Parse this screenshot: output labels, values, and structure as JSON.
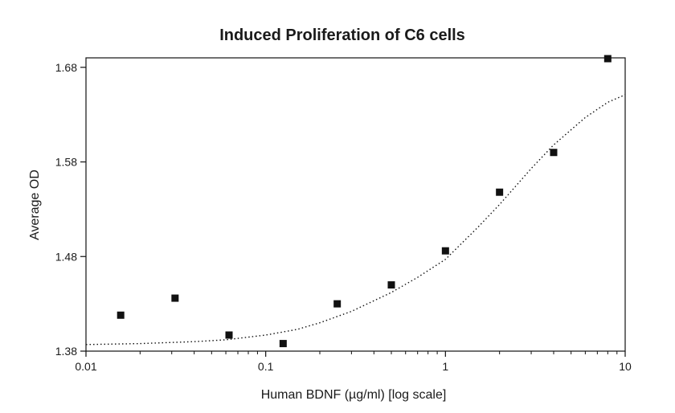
{
  "chart_data": {
    "type": "scatter",
    "title": "Induced Proliferation of C6 cells",
    "xlabel": "Human BDNF (µg/ml) [log scale]",
    "ylabel": "Average OD",
    "x_scale": "log",
    "xlim": [
      0.01,
      10
    ],
    "ylim": [
      1.38,
      1.69
    ],
    "x_ticks": [
      0.01,
      0.1,
      1,
      10
    ],
    "x_tick_labels": [
      "0.01",
      "0.1",
      "1",
      "10"
    ],
    "y_ticks": [
      1.38,
      1.48,
      1.58,
      1.68
    ],
    "y_tick_labels": [
      "1.38",
      "1.48",
      "1.58",
      "1.68"
    ],
    "grid": false,
    "series": [
      {
        "marker": "square",
        "color": "#111111",
        "points": [
          {
            "x": 0.0156,
            "y": 1.418
          },
          {
            "x": 0.0313,
            "y": 1.436
          },
          {
            "x": 0.0625,
            "y": 1.397
          },
          {
            "x": 0.125,
            "y": 1.388
          },
          {
            "x": 0.25,
            "y": 1.43
          },
          {
            "x": 0.5,
            "y": 1.45
          },
          {
            "x": 1.0,
            "y": 1.486
          },
          {
            "x": 2.0,
            "y": 1.548
          },
          {
            "x": 4.0,
            "y": 1.59
          },
          {
            "x": 8.0,
            "y": 1.69
          }
        ]
      }
    ],
    "fit_curve": {
      "style": "dotted",
      "color": "#111111",
      "points": [
        {
          "x": 0.01,
          "y": 1.387
        },
        {
          "x": 0.02,
          "y": 1.388
        },
        {
          "x": 0.04,
          "y": 1.39
        },
        {
          "x": 0.06,
          "y": 1.392
        },
        {
          "x": 0.1,
          "y": 1.397
        },
        {
          "x": 0.15,
          "y": 1.403
        },
        {
          "x": 0.2,
          "y": 1.41
        },
        {
          "x": 0.3,
          "y": 1.422
        },
        {
          "x": 0.5,
          "y": 1.442
        },
        {
          "x": 0.7,
          "y": 1.458
        },
        {
          "x": 1.0,
          "y": 1.477
        },
        {
          "x": 1.5,
          "y": 1.51
        },
        {
          "x": 2.0,
          "y": 1.535
        },
        {
          "x": 3.0,
          "y": 1.573
        },
        {
          "x": 4.0,
          "y": 1.598
        },
        {
          "x": 6.0,
          "y": 1.627
        },
        {
          "x": 8.0,
          "y": 1.643
        },
        {
          "x": 10.0,
          "y": 1.651
        }
      ]
    }
  }
}
